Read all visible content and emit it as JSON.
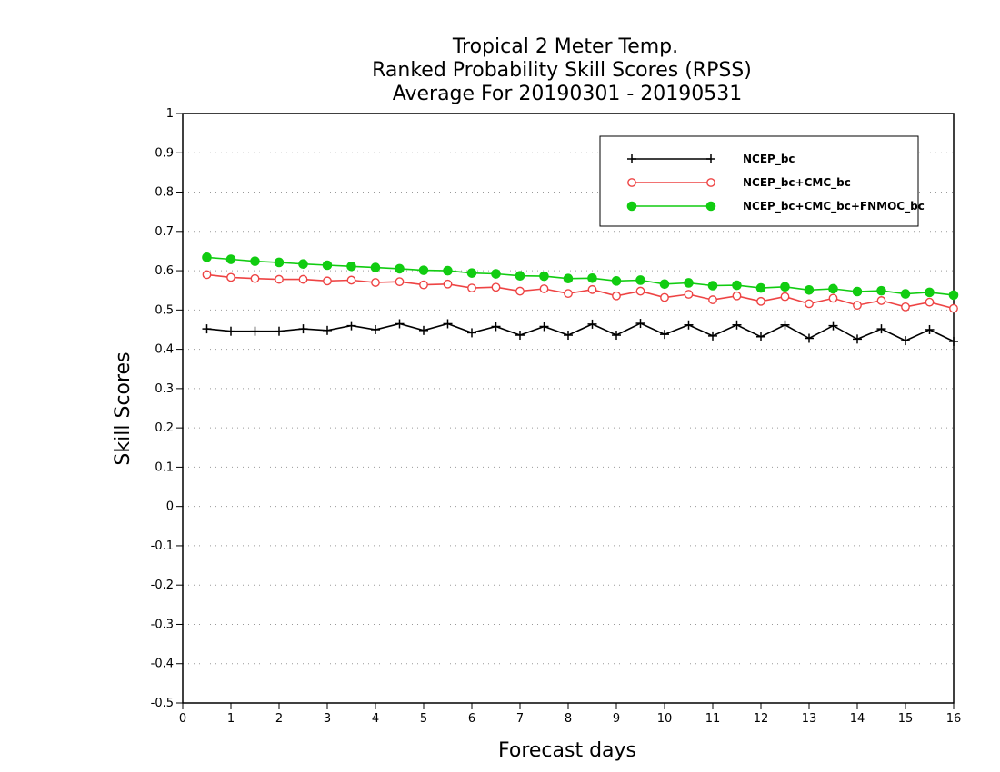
{
  "chart_data": {
    "type": "line",
    "title": [
      "Tropical 2 Meter Temp.",
      "Ranked Probability Skill Scores (RPSS)",
      "Average For 20190301 - 20190531"
    ],
    "xlabel": "Forecast days",
    "ylabel": "Skill Scores",
    "xlim": [
      0,
      16
    ],
    "ylim": [
      -0.5,
      1
    ],
    "xticks": [
      0,
      1,
      2,
      3,
      4,
      5,
      6,
      7,
      8,
      9,
      10,
      11,
      12,
      13,
      14,
      15,
      16
    ],
    "yticks": [
      -0.5,
      -0.4,
      -0.3,
      -0.2,
      -0.1,
      0,
      0.1,
      0.2,
      0.3,
      0.4,
      0.5,
      0.6,
      0.7,
      0.8,
      0.9,
      1
    ],
    "grid": "horizontal dotted",
    "legend_position": "top-right",
    "x": [
      0.5,
      1.0,
      1.5,
      2.0,
      2.5,
      3.0,
      3.5,
      4.0,
      4.5,
      5.0,
      5.5,
      6.0,
      6.5,
      7.0,
      7.5,
      8.0,
      8.5,
      9.0,
      9.5,
      10.0,
      10.5,
      11.0,
      11.5,
      12.0,
      12.5,
      13.0,
      13.5,
      14.0,
      14.5,
      15.0,
      15.5,
      16.0
    ],
    "series": [
      {
        "name": "NCEP_bc",
        "color": "#000000",
        "marker": "plus",
        "values": [
          0.452,
          0.446,
          0.446,
          0.446,
          0.452,
          0.448,
          0.46,
          0.45,
          0.465,
          0.448,
          0.465,
          0.442,
          0.458,
          0.436,
          0.458,
          0.436,
          0.464,
          0.436,
          0.466,
          0.438,
          0.462,
          0.434,
          0.462,
          0.432,
          0.462,
          0.428,
          0.46,
          0.426,
          0.452,
          0.422,
          0.45,
          0.42
        ]
      },
      {
        "name": "NCEP_bc+CMC_bc",
        "color": "#ee4444",
        "marker": "open-circle",
        "values": [
          0.59,
          0.583,
          0.58,
          0.578,
          0.578,
          0.574,
          0.576,
          0.57,
          0.572,
          0.564,
          0.566,
          0.556,
          0.558,
          0.548,
          0.554,
          0.542,
          0.552,
          0.536,
          0.548,
          0.532,
          0.54,
          0.526,
          0.536,
          0.522,
          0.534,
          0.516,
          0.53,
          0.512,
          0.524,
          0.508,
          0.52,
          0.504
        ]
      },
      {
        "name": "NCEP_bc+CMC_bc+FNMOC_bc",
        "color": "#11cc11",
        "marker": "filled-circle",
        "values": [
          0.634,
          0.629,
          0.624,
          0.621,
          0.617,
          0.614,
          0.611,
          0.608,
          0.605,
          0.601,
          0.6,
          0.594,
          0.592,
          0.587,
          0.586,
          0.58,
          0.581,
          0.574,
          0.576,
          0.566,
          0.569,
          0.562,
          0.563,
          0.556,
          0.559,
          0.551,
          0.554,
          0.547,
          0.549,
          0.541,
          0.545,
          0.538
        ]
      }
    ]
  }
}
